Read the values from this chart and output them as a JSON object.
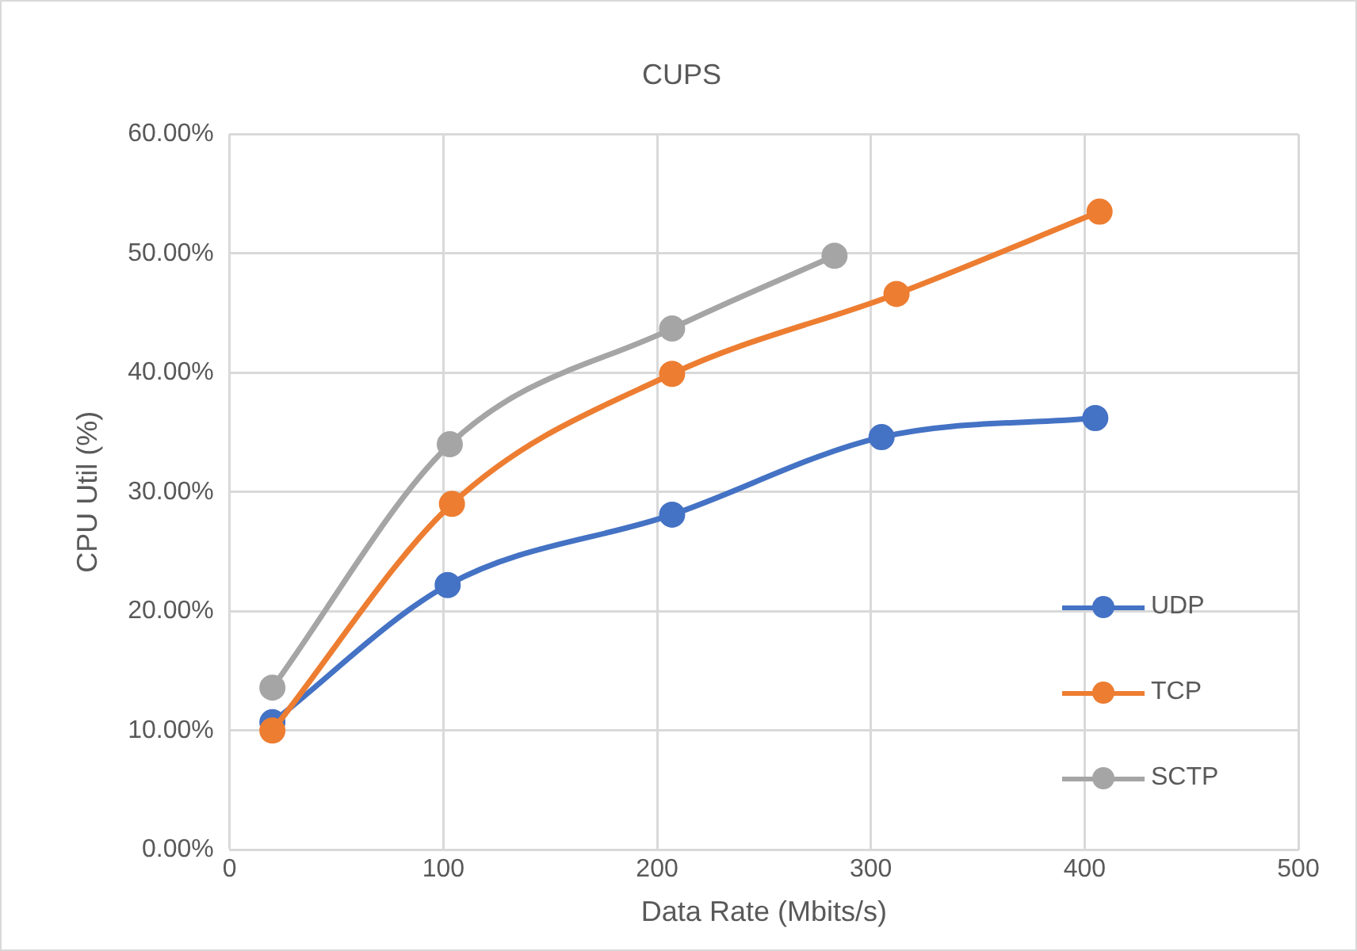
{
  "chart_data": {
    "type": "line",
    "title": "CUPS",
    "xlabel": "Data Rate (Mbits/s)",
    "ylabel": "CPU Util (%)",
    "xlim": [
      0,
      500
    ],
    "xticks": [
      0,
      100,
      200,
      300,
      400,
      500
    ],
    "ylim": [
      0,
      60
    ],
    "yticks": [
      {
        "value": 0,
        "label": "0.00%"
      },
      {
        "value": 10,
        "label": "10.00%"
      },
      {
        "value": 20,
        "label": "20.00%"
      },
      {
        "value": 30,
        "label": "30.00%"
      },
      {
        "value": 40,
        "label": "40.00%"
      },
      {
        "value": 50,
        "label": "50.00%"
      },
      {
        "value": 60,
        "label": "60.00%"
      }
    ],
    "grid": true,
    "legend": "right",
    "marker": "circle",
    "line_style": "solid",
    "series": [
      {
        "name": "UDP",
        "color": "#4472c4",
        "x": [
          20,
          102,
          207,
          305,
          405
        ],
        "values": [
          10.7,
          22.2,
          28.1,
          34.6,
          36.2
        ]
      },
      {
        "name": "TCP",
        "color": "#ed7d31",
        "x": [
          20,
          104,
          207,
          312,
          407
        ],
        "values": [
          10.0,
          29.0,
          39.9,
          46.6,
          53.5
        ]
      },
      {
        "name": "SCTP",
        "color": "#a5a5a5",
        "x": [
          20,
          103,
          207,
          283
        ],
        "values": [
          13.6,
          34.0,
          43.7,
          49.8
        ]
      }
    ]
  }
}
